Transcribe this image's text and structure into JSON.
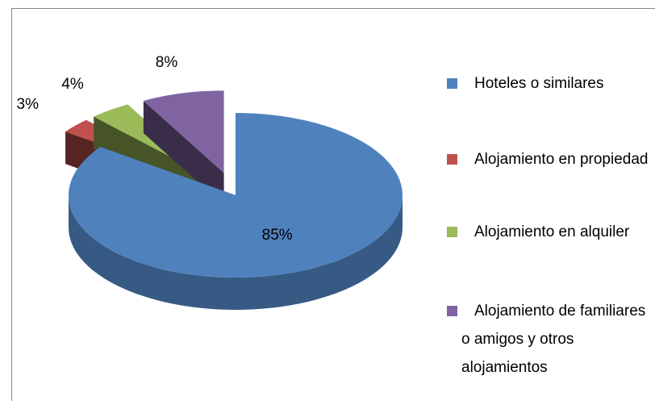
{
  "chart_data": {
    "type": "pie3d",
    "categories": [
      "Hoteles o similares",
      "Alojamiento en propiedad",
      "Alojamiento en alquiler",
      "Alojamiento de familiares o amigos y otros alojamientos"
    ],
    "values": [
      85,
      3,
      4,
      8
    ],
    "value_labels": [
      "85%",
      "3%",
      "4%",
      "8%"
    ],
    "colors": [
      "#4f81bd",
      "#c0504d",
      "#9bbb59",
      "#8064a2"
    ],
    "legend": "right"
  }
}
